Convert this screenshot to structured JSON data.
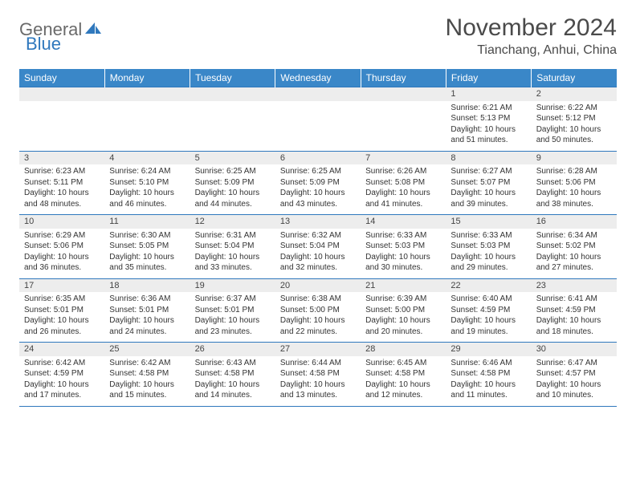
{
  "logo": {
    "part1": "General",
    "part2": "Blue"
  },
  "title": "November 2024",
  "location": "Tianchang, Anhui, China",
  "colors": {
    "header_bg": "#3a87c8",
    "header_text": "#ffffff",
    "daynum_bg": "#ededed",
    "border": "#2f78bd",
    "logo_gray": "#6a6a6a",
    "logo_blue": "#2f78bd"
  },
  "weekdays": [
    "Sunday",
    "Monday",
    "Tuesday",
    "Wednesday",
    "Thursday",
    "Friday",
    "Saturday"
  ],
  "weeks": [
    {
      "nums": [
        "",
        "",
        "",
        "",
        "",
        "1",
        "2"
      ],
      "cells": [
        {},
        {},
        {},
        {},
        {},
        {
          "sunrise": "Sunrise: 6:21 AM",
          "sunset": "Sunset: 5:13 PM",
          "dl1": "Daylight: 10 hours",
          "dl2": "and 51 minutes."
        },
        {
          "sunrise": "Sunrise: 6:22 AM",
          "sunset": "Sunset: 5:12 PM",
          "dl1": "Daylight: 10 hours",
          "dl2": "and 50 minutes."
        }
      ]
    },
    {
      "nums": [
        "3",
        "4",
        "5",
        "6",
        "7",
        "8",
        "9"
      ],
      "cells": [
        {
          "sunrise": "Sunrise: 6:23 AM",
          "sunset": "Sunset: 5:11 PM",
          "dl1": "Daylight: 10 hours",
          "dl2": "and 48 minutes."
        },
        {
          "sunrise": "Sunrise: 6:24 AM",
          "sunset": "Sunset: 5:10 PM",
          "dl1": "Daylight: 10 hours",
          "dl2": "and 46 minutes."
        },
        {
          "sunrise": "Sunrise: 6:25 AM",
          "sunset": "Sunset: 5:09 PM",
          "dl1": "Daylight: 10 hours",
          "dl2": "and 44 minutes."
        },
        {
          "sunrise": "Sunrise: 6:25 AM",
          "sunset": "Sunset: 5:09 PM",
          "dl1": "Daylight: 10 hours",
          "dl2": "and 43 minutes."
        },
        {
          "sunrise": "Sunrise: 6:26 AM",
          "sunset": "Sunset: 5:08 PM",
          "dl1": "Daylight: 10 hours",
          "dl2": "and 41 minutes."
        },
        {
          "sunrise": "Sunrise: 6:27 AM",
          "sunset": "Sunset: 5:07 PM",
          "dl1": "Daylight: 10 hours",
          "dl2": "and 39 minutes."
        },
        {
          "sunrise": "Sunrise: 6:28 AM",
          "sunset": "Sunset: 5:06 PM",
          "dl1": "Daylight: 10 hours",
          "dl2": "and 38 minutes."
        }
      ]
    },
    {
      "nums": [
        "10",
        "11",
        "12",
        "13",
        "14",
        "15",
        "16"
      ],
      "cells": [
        {
          "sunrise": "Sunrise: 6:29 AM",
          "sunset": "Sunset: 5:06 PM",
          "dl1": "Daylight: 10 hours",
          "dl2": "and 36 minutes."
        },
        {
          "sunrise": "Sunrise: 6:30 AM",
          "sunset": "Sunset: 5:05 PM",
          "dl1": "Daylight: 10 hours",
          "dl2": "and 35 minutes."
        },
        {
          "sunrise": "Sunrise: 6:31 AM",
          "sunset": "Sunset: 5:04 PM",
          "dl1": "Daylight: 10 hours",
          "dl2": "and 33 minutes."
        },
        {
          "sunrise": "Sunrise: 6:32 AM",
          "sunset": "Sunset: 5:04 PM",
          "dl1": "Daylight: 10 hours",
          "dl2": "and 32 minutes."
        },
        {
          "sunrise": "Sunrise: 6:33 AM",
          "sunset": "Sunset: 5:03 PM",
          "dl1": "Daylight: 10 hours",
          "dl2": "and 30 minutes."
        },
        {
          "sunrise": "Sunrise: 6:33 AM",
          "sunset": "Sunset: 5:03 PM",
          "dl1": "Daylight: 10 hours",
          "dl2": "and 29 minutes."
        },
        {
          "sunrise": "Sunrise: 6:34 AM",
          "sunset": "Sunset: 5:02 PM",
          "dl1": "Daylight: 10 hours",
          "dl2": "and 27 minutes."
        }
      ]
    },
    {
      "nums": [
        "17",
        "18",
        "19",
        "20",
        "21",
        "22",
        "23"
      ],
      "cells": [
        {
          "sunrise": "Sunrise: 6:35 AM",
          "sunset": "Sunset: 5:01 PM",
          "dl1": "Daylight: 10 hours",
          "dl2": "and 26 minutes."
        },
        {
          "sunrise": "Sunrise: 6:36 AM",
          "sunset": "Sunset: 5:01 PM",
          "dl1": "Daylight: 10 hours",
          "dl2": "and 24 minutes."
        },
        {
          "sunrise": "Sunrise: 6:37 AM",
          "sunset": "Sunset: 5:01 PM",
          "dl1": "Daylight: 10 hours",
          "dl2": "and 23 minutes."
        },
        {
          "sunrise": "Sunrise: 6:38 AM",
          "sunset": "Sunset: 5:00 PM",
          "dl1": "Daylight: 10 hours",
          "dl2": "and 22 minutes."
        },
        {
          "sunrise": "Sunrise: 6:39 AM",
          "sunset": "Sunset: 5:00 PM",
          "dl1": "Daylight: 10 hours",
          "dl2": "and 20 minutes."
        },
        {
          "sunrise": "Sunrise: 6:40 AM",
          "sunset": "Sunset: 4:59 PM",
          "dl1": "Daylight: 10 hours",
          "dl2": "and 19 minutes."
        },
        {
          "sunrise": "Sunrise: 6:41 AM",
          "sunset": "Sunset: 4:59 PM",
          "dl1": "Daylight: 10 hours",
          "dl2": "and 18 minutes."
        }
      ]
    },
    {
      "nums": [
        "24",
        "25",
        "26",
        "27",
        "28",
        "29",
        "30"
      ],
      "cells": [
        {
          "sunrise": "Sunrise: 6:42 AM",
          "sunset": "Sunset: 4:59 PM",
          "dl1": "Daylight: 10 hours",
          "dl2": "and 17 minutes."
        },
        {
          "sunrise": "Sunrise: 6:42 AM",
          "sunset": "Sunset: 4:58 PM",
          "dl1": "Daylight: 10 hours",
          "dl2": "and 15 minutes."
        },
        {
          "sunrise": "Sunrise: 6:43 AM",
          "sunset": "Sunset: 4:58 PM",
          "dl1": "Daylight: 10 hours",
          "dl2": "and 14 minutes."
        },
        {
          "sunrise": "Sunrise: 6:44 AM",
          "sunset": "Sunset: 4:58 PM",
          "dl1": "Daylight: 10 hours",
          "dl2": "and 13 minutes."
        },
        {
          "sunrise": "Sunrise: 6:45 AM",
          "sunset": "Sunset: 4:58 PM",
          "dl1": "Daylight: 10 hours",
          "dl2": "and 12 minutes."
        },
        {
          "sunrise": "Sunrise: 6:46 AM",
          "sunset": "Sunset: 4:58 PM",
          "dl1": "Daylight: 10 hours",
          "dl2": "and 11 minutes."
        },
        {
          "sunrise": "Sunrise: 6:47 AM",
          "sunset": "Sunset: 4:57 PM",
          "dl1": "Daylight: 10 hours",
          "dl2": "and 10 minutes."
        }
      ]
    }
  ]
}
